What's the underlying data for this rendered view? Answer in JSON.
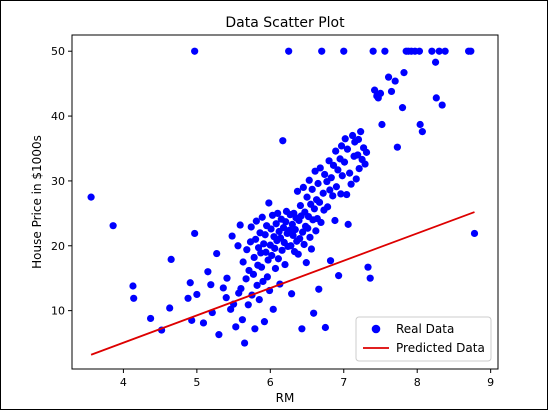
{
  "chart_data": {
    "type": "scatter",
    "title": "Data Scatter Plot",
    "xlabel": "RM",
    "ylabel": "House Price in $1000s",
    "xlim": [
      3.3,
      9.1
    ],
    "ylim": [
      1.0,
      52.5
    ],
    "xticks": [
      4,
      5,
      6,
      7,
      8,
      9
    ],
    "yticks": [
      10,
      20,
      30,
      40,
      50
    ],
    "grid": false,
    "legend_position": "lower-right",
    "series": [
      {
        "name": "Real Data",
        "kind": "scatter",
        "color": "#0000ff",
        "points": [
          [
            3.56,
            27.5
          ],
          [
            3.86,
            23.1
          ],
          [
            4.13,
            13.8
          ],
          [
            4.14,
            11.9
          ],
          [
            4.37,
            8.8
          ],
          [
            4.52,
            7.0
          ],
          [
            4.63,
            10.4
          ],
          [
            4.65,
            17.9
          ],
          [
            4.88,
            11.9
          ],
          [
            4.91,
            14.3
          ],
          [
            4.93,
            8.5
          ],
          [
            4.97,
            50.0
          ],
          [
            4.97,
            21.9
          ],
          [
            5.0,
            12.5
          ],
          [
            5.09,
            8.1
          ],
          [
            5.15,
            16.0
          ],
          [
            5.19,
            14.0
          ],
          [
            5.21,
            9.7
          ],
          [
            5.27,
            18.8
          ],
          [
            5.3,
            6.3
          ],
          [
            5.36,
            13.5
          ],
          [
            5.4,
            12.0
          ],
          [
            5.41,
            15.0
          ],
          [
            5.46,
            10.2
          ],
          [
            5.48,
            21.5
          ],
          [
            5.5,
            11.0
          ],
          [
            5.53,
            7.5
          ],
          [
            5.56,
            20.0
          ],
          [
            5.57,
            12.7
          ],
          [
            5.59,
            23.2
          ],
          [
            5.6,
            13.4
          ],
          [
            5.62,
            8.6
          ],
          [
            5.63,
            17.5
          ],
          [
            5.65,
            5.0
          ],
          [
            5.67,
            14.9
          ],
          [
            5.68,
            19.4
          ],
          [
            5.7,
            10.9
          ],
          [
            5.71,
            16.2
          ],
          [
            5.73,
            20.6
          ],
          [
            5.74,
            22.9
          ],
          [
            5.75,
            12.4
          ],
          [
            5.77,
            15.6
          ],
          [
            5.78,
            18.2
          ],
          [
            5.79,
            7.2
          ],
          [
            5.8,
            21.0
          ],
          [
            5.81,
            23.8
          ],
          [
            5.82,
            13.9
          ],
          [
            5.83,
            17.0
          ],
          [
            5.84,
            19.7
          ],
          [
            5.85,
            11.7
          ],
          [
            5.86,
            22.0
          ],
          [
            5.87,
            18.9
          ],
          [
            5.88,
            16.7
          ],
          [
            5.89,
            24.4
          ],
          [
            5.9,
            14.5
          ],
          [
            5.91,
            20.3
          ],
          [
            5.92,
            8.3
          ],
          [
            5.93,
            21.7
          ],
          [
            5.94,
            19.0
          ],
          [
            5.95,
            23.1
          ],
          [
            5.96,
            15.2
          ],
          [
            5.97,
            17.8
          ],
          [
            5.98,
            26.6
          ],
          [
            5.99,
            13.1
          ],
          [
            6.0,
            20.1
          ],
          [
            6.01,
            22.6
          ],
          [
            6.02,
            18.5
          ],
          [
            6.03,
            24.7
          ],
          [
            6.04,
            10.2
          ],
          [
            6.05,
            21.4
          ],
          [
            6.06,
            19.6
          ],
          [
            6.07,
            16.5
          ],
          [
            6.08,
            23.4
          ],
          [
            6.09,
            20.8
          ],
          [
            6.1,
            25.0
          ],
          [
            6.11,
            18.0
          ],
          [
            6.12,
            22.2
          ],
          [
            6.13,
            14.1
          ],
          [
            6.14,
            21.2
          ],
          [
            6.15,
            24.1
          ],
          [
            6.16,
            19.3
          ],
          [
            6.17,
            36.2
          ],
          [
            6.18,
            22.8
          ],
          [
            6.19,
            20.5
          ],
          [
            6.2,
            17.1
          ],
          [
            6.21,
            23.7
          ],
          [
            6.22,
            25.3
          ],
          [
            6.23,
            21.9
          ],
          [
            6.24,
            19.9
          ],
          [
            6.25,
            50.0
          ],
          [
            6.26,
            22.4
          ],
          [
            6.27,
            24.8
          ],
          [
            6.28,
            20.0
          ],
          [
            6.29,
            12.6
          ],
          [
            6.3,
            23.3
          ],
          [
            6.31,
            21.6
          ],
          [
            6.32,
            25.0
          ],
          [
            6.33,
            19.1
          ],
          [
            6.34,
            22.5
          ],
          [
            6.35,
            24.3
          ],
          [
            6.36,
            20.7
          ],
          [
            6.37,
            28.4
          ],
          [
            6.38,
            18.7
          ],
          [
            6.39,
            23.9
          ],
          [
            6.4,
            21.1
          ],
          [
            6.41,
            26.2
          ],
          [
            6.42,
            24.6
          ],
          [
            6.43,
            7.2
          ],
          [
            6.44,
            22.1
          ],
          [
            6.45,
            29.0
          ],
          [
            6.46,
            20.2
          ],
          [
            6.47,
            25.2
          ],
          [
            6.48,
            23.0
          ],
          [
            6.49,
            17.4
          ],
          [
            6.5,
            27.5
          ],
          [
            6.51,
            22.7
          ],
          [
            6.52,
            24.5
          ],
          [
            6.53,
            30.1
          ],
          [
            6.54,
            21.3
          ],
          [
            6.55,
            26.4
          ],
          [
            6.56,
            19.5
          ],
          [
            6.57,
            28.7
          ],
          [
            6.58,
            24.0
          ],
          [
            6.59,
            9.6
          ],
          [
            6.6,
            25.7
          ],
          [
            6.61,
            31.5
          ],
          [
            6.62,
            22.3
          ],
          [
            6.63,
            27.1
          ],
          [
            6.64,
            24.2
          ],
          [
            6.65,
            29.6
          ],
          [
            6.66,
            13.3
          ],
          [
            6.67,
            26.7
          ],
          [
            6.68,
            32.0
          ],
          [
            6.69,
            23.6
          ],
          [
            6.7,
            50.0
          ],
          [
            6.72,
            28.1
          ],
          [
            6.73,
            25.5
          ],
          [
            6.74,
            31.0
          ],
          [
            6.75,
            7.4
          ],
          [
            6.77,
            29.9
          ],
          [
            6.78,
            26.0
          ],
          [
            6.8,
            33.1
          ],
          [
            6.81,
            28.6
          ],
          [
            6.82,
            17.7
          ],
          [
            6.83,
            30.5
          ],
          [
            6.85,
            27.7
          ],
          [
            6.86,
            32.4
          ],
          [
            6.88,
            23.9
          ],
          [
            6.89,
            34.6
          ],
          [
            6.9,
            29.1
          ],
          [
            6.92,
            31.7
          ],
          [
            6.93,
            15.4
          ],
          [
            6.95,
            33.4
          ],
          [
            6.96,
            28.0
          ],
          [
            6.97,
            35.4
          ],
          [
            6.98,
            30.8
          ],
          [
            7.0,
            50.0
          ],
          [
            7.01,
            32.9
          ],
          [
            7.02,
            36.5
          ],
          [
            7.04,
            27.9
          ],
          [
            7.05,
            34.9
          ],
          [
            7.06,
            23.3
          ],
          [
            7.08,
            31.2
          ],
          [
            7.1,
            29.5
          ],
          [
            7.12,
            37.0
          ],
          [
            7.14,
            33.8
          ],
          [
            7.15,
            36.0
          ],
          [
            7.17,
            30.3
          ],
          [
            7.19,
            34.0
          ],
          [
            7.2,
            36.4
          ],
          [
            7.21,
            31.9
          ],
          [
            7.23,
            37.6
          ],
          [
            7.25,
            33.3
          ],
          [
            7.27,
            35.1
          ],
          [
            7.29,
            32.6
          ],
          [
            7.31,
            34.4
          ],
          [
            7.33,
            16.7
          ],
          [
            7.36,
            15.0
          ],
          [
            7.4,
            50.0
          ],
          [
            7.42,
            44.0
          ],
          [
            7.45,
            43.1
          ],
          [
            7.47,
            42.8
          ],
          [
            7.5,
            43.5
          ],
          [
            7.52,
            38.7
          ],
          [
            7.56,
            50.0
          ],
          [
            7.61,
            46.0
          ],
          [
            7.65,
            43.8
          ],
          [
            7.7,
            45.4
          ],
          [
            7.73,
            35.2
          ],
          [
            7.8,
            41.3
          ],
          [
            7.82,
            46.7
          ],
          [
            7.85,
            50.0
          ],
          [
            7.88,
            50.0
          ],
          [
            7.92,
            50.0
          ],
          [
            7.97,
            50.0
          ],
          [
            8.03,
            50.0
          ],
          [
            8.04,
            38.7
          ],
          [
            8.07,
            37.6
          ],
          [
            8.2,
            50.0
          ],
          [
            8.25,
            48.3
          ],
          [
            8.26,
            42.8
          ],
          [
            8.3,
            50.0
          ],
          [
            8.34,
            41.7
          ],
          [
            8.38,
            50.0
          ],
          [
            8.7,
            50.0
          ],
          [
            8.73,
            50.0
          ],
          [
            8.78,
            21.9
          ]
        ]
      },
      {
        "name": "Predicted Data",
        "kind": "line",
        "color": "#dd0000",
        "points": [
          [
            3.56,
            3.2
          ],
          [
            8.78,
            25.2
          ]
        ]
      }
    ]
  }
}
